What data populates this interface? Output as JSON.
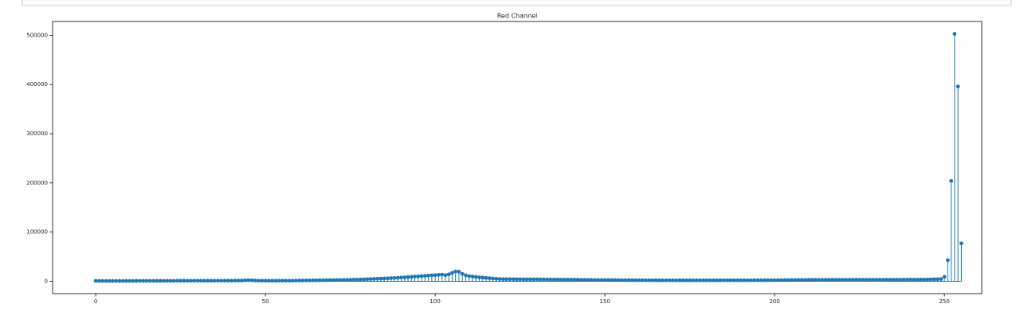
{
  "chart_data": {
    "type": "stem",
    "title": "Red Channel",
    "color": "#1f77b4",
    "baseline_color": "#d62728",
    "x": [
      0,
      1,
      2,
      3,
      4,
      5,
      6,
      7,
      8,
      9,
      10,
      11,
      12,
      13,
      14,
      15,
      16,
      17,
      18,
      19,
      20,
      21,
      22,
      23,
      24,
      25,
      26,
      27,
      28,
      29,
      30,
      31,
      32,
      33,
      34,
      35,
      36,
      37,
      38,
      39,
      40,
      41,
      42,
      43,
      44,
      45,
      46,
      47,
      48,
      49,
      50,
      51,
      52,
      53,
      54,
      55,
      56,
      57,
      58,
      59,
      60,
      61,
      62,
      63,
      64,
      65,
      66,
      67,
      68,
      69,
      70,
      71,
      72,
      73,
      74,
      75,
      76,
      77,
      78,
      79,
      80,
      81,
      82,
      83,
      84,
      85,
      86,
      87,
      88,
      89,
      90,
      91,
      92,
      93,
      94,
      95,
      96,
      97,
      98,
      99,
      100,
      101,
      102,
      103,
      104,
      105,
      106,
      107,
      108,
      109,
      110,
      111,
      112,
      113,
      114,
      115,
      116,
      117,
      118,
      119,
      120,
      121,
      122,
      123,
      124,
      125,
      126,
      127,
      128,
      129,
      130,
      131,
      132,
      133,
      134,
      135,
      136,
      137,
      138,
      139,
      140,
      141,
      142,
      143,
      144,
      145,
      146,
      147,
      148,
      149,
      150,
      151,
      152,
      153,
      154,
      155,
      156,
      157,
      158,
      159,
      160,
      161,
      162,
      163,
      164,
      165,
      166,
      167,
      168,
      169,
      170,
      171,
      172,
      173,
      174,
      175,
      176,
      177,
      178,
      179,
      180,
      181,
      182,
      183,
      184,
      185,
      186,
      187,
      188,
      189,
      190,
      191,
      192,
      193,
      194,
      195,
      196,
      197,
      198,
      199,
      200,
      201,
      202,
      203,
      204,
      205,
      206,
      207,
      208,
      209,
      210,
      211,
      212,
      213,
      214,
      215,
      216,
      217,
      218,
      219,
      220,
      221,
      222,
      223,
      224,
      225,
      226,
      227,
      228,
      229,
      230,
      231,
      232,
      233,
      234,
      235,
      236,
      237,
      238,
      239,
      240,
      241,
      242,
      243,
      244,
      245,
      246,
      247,
      248,
      249,
      250,
      251,
      252,
      253,
      254,
      255
    ],
    "values": [
      800,
      700,
      700,
      600,
      600,
      600,
      700,
      700,
      700,
      700,
      700,
      700,
      800,
      800,
      800,
      800,
      800,
      800,
      900,
      900,
      900,
      900,
      900,
      900,
      1000,
      1000,
      1000,
      1000,
      1000,
      1000,
      1000,
      1000,
      1000,
      1100,
      1100,
      1100,
      1100,
      1100,
      1200,
      1200,
      1200,
      1300,
      1400,
      1500,
      2000,
      2200,
      2000,
      1500,
      1200,
      1100,
      1000,
      1000,
      1000,
      1000,
      1000,
      1100,
      1100,
      1100,
      1200,
      1300,
      1500,
      1600,
      1700,
      1800,
      1900,
      2000,
      2000,
      2100,
      2200,
      2300,
      2400,
      2500,
      2600,
      2700,
      2800,
      3000,
      3200,
      3400,
      3600,
      3900,
      4200,
      4500,
      4800,
      5100,
      5400,
      5700,
      6000,
      6300,
      6700,
      7100,
      7500,
      8000,
      8500,
      9000,
      9500,
      10000,
      10500,
      11000,
      11500,
      12000,
      12500,
      13000,
      13500,
      12500,
      14000,
      17000,
      20000,
      19500,
      15000,
      12000,
      10500,
      9500,
      8800,
      8000,
      7400,
      6800,
      6200,
      5600,
      5000,
      4600,
      4400,
      4300,
      4200,
      4200,
      4100,
      4100,
      4000,
      4000,
      4000,
      3900,
      3900,
      3800,
      3800,
      3700,
      3600,
      3500,
      3500,
      3400,
      3400,
      3300,
      3300,
      3200,
      3100,
      3000,
      2900,
      2800,
      2700,
      2600,
      2600,
      2500,
      2500,
      2500,
      2400,
      2400,
      2400,
      2300,
      2300,
      2300,
      2200,
      2200,
      2100,
      2100,
      2000,
      2000,
      2000,
      2000,
      1900,
      1900,
      1900,
      1900,
      1900,
      1900,
      1900,
      1900,
      1900,
      1900,
      1900,
      1900,
      1900,
      1900,
      1900,
      1900,
      1900,
      1900,
      1900,
      2000,
      2000,
      2000,
      2000,
      2000,
      2000,
      2000,
      2000,
      2000,
      2100,
      2100,
      2100,
      2100,
      2200,
      2200,
      2200,
      2300,
      2300,
      2400,
      2400,
      2500,
      2800,
      2800,
      2800,
      2800,
      2900,
      2900,
      2900,
      2900,
      2900,
      3000,
      3000,
      3000,
      3000,
      3000,
      3000,
      3000,
      3000,
      3100,
      3100,
      3100,
      3100,
      3100,
      3100,
      3100,
      3100,
      3100,
      3100,
      3100,
      3200,
      3200,
      3200,
      3200,
      3200,
      3300,
      3300,
      3300,
      3400,
      3400,
      3500,
      3600,
      3800,
      4000,
      4200,
      4500,
      9000,
      43000,
      204000,
      503000,
      396000,
      77000
    ],
    "xlim": [
      -12.7,
      261
    ],
    "xticks": [
      0,
      50,
      100,
      150,
      200,
      250
    ],
    "ylim": [
      -25150,
      528150
    ],
    "yticks": [
      0,
      100000,
      200000,
      300000,
      400000,
      500000
    ]
  }
}
